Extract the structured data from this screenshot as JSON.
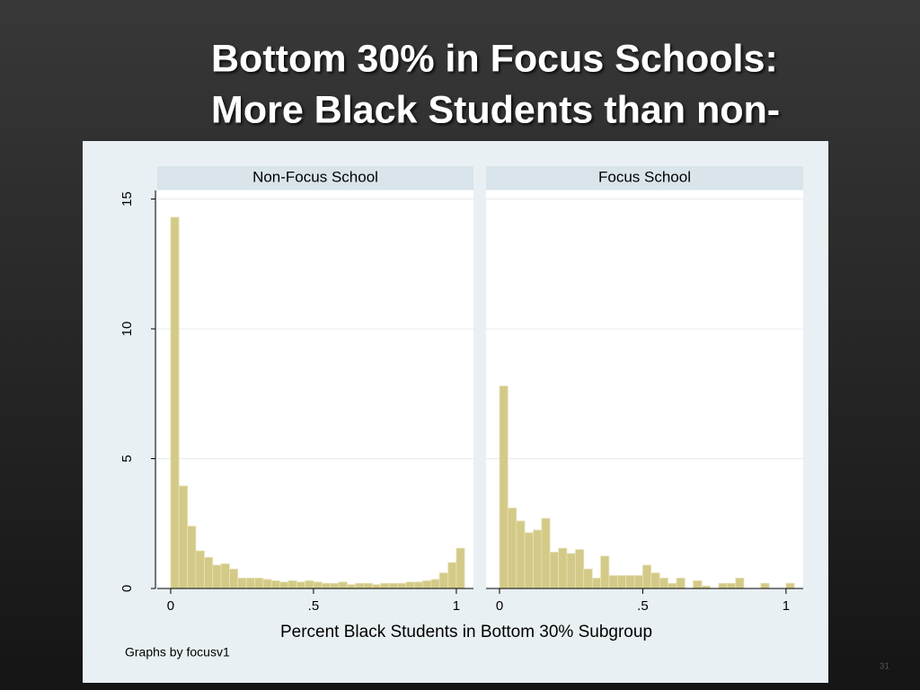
{
  "slide": {
    "title": [
      "Bottom 30% in Focus Schools:",
      "More Black Students than non-"
    ],
    "page_number": "31"
  },
  "figure": {
    "xlabel": "Percent Black Students in Bottom 30% Subgroup",
    "note": "Graphs by focusv1"
  },
  "chart_data": [
    {
      "type": "histogram",
      "title": "Non-Focus School",
      "color": "#d3ca88",
      "bins": [
        0,
        0.029,
        0.059,
        0.088,
        0.118,
        0.147,
        0.176,
        0.206,
        0.235,
        0.265,
        0.294,
        0.324,
        0.353,
        0.382,
        0.412,
        0.441,
        0.471,
        0.5,
        0.529,
        0.559,
        0.588,
        0.618,
        0.647,
        0.676,
        0.706,
        0.735,
        0.765,
        0.794,
        0.824,
        0.853,
        0.882,
        0.912,
        0.941,
        0.971,
        1,
        1.029
      ],
      "values": [
        14.3,
        3.95,
        2.4,
        1.45,
        1.2,
        0.9,
        0.95,
        0.75,
        0.4,
        0.4,
        0.4,
        0.35,
        0.3,
        0.25,
        0.3,
        0.25,
        0.3,
        0.25,
        0.2,
        0.2,
        0.25,
        0.15,
        0.2,
        0.2,
        0.15,
        0.2,
        0.2,
        0.2,
        0.25,
        0.25,
        0.3,
        0.35,
        0.6,
        1.0,
        1.55
      ],
      "xlim": [
        -0.047,
        1.06
      ],
      "ylim": [
        0,
        15.33
      ],
      "xticks": [
        0,
        {
          "value": 0.5,
          "label": ".5"
        },
        1
      ],
      "yticks": [
        0,
        5,
        10,
        15
      ],
      "grid": true
    },
    {
      "type": "histogram",
      "title": "Focus School",
      "color": "#d3ca88",
      "bins": [
        0,
        0.029,
        0.059,
        0.088,
        0.118,
        0.147,
        0.176,
        0.206,
        0.235,
        0.265,
        0.294,
        0.324,
        0.353,
        0.382,
        0.412,
        0.441,
        0.471,
        0.5,
        0.529,
        0.559,
        0.588,
        0.618,
        0.647,
        0.676,
        0.706,
        0.735,
        0.765,
        0.794,
        0.824,
        0.853,
        0.882,
        0.912,
        0.941,
        0.971,
        1,
        1.029
      ],
      "values": [
        7.8,
        3.1,
        2.6,
        2.15,
        2.25,
        2.7,
        1.4,
        1.55,
        1.35,
        1.5,
        0.75,
        0.4,
        1.25,
        0.5,
        0.5,
        0.5,
        0.5,
        0.9,
        0.6,
        0.4,
        0.2,
        0.4,
        0,
        0.3,
        0.1,
        0,
        0.2,
        0.2,
        0.4,
        0,
        0,
        0.2,
        0,
        0,
        0.2
      ],
      "xlim": [
        -0.047,
        1.06
      ],
      "ylim": [
        0,
        15.33
      ],
      "xticks": [
        0,
        {
          "value": 0.5,
          "label": ".5"
        },
        1
      ],
      "yticks": [
        0,
        5,
        10,
        15
      ],
      "grid": true
    }
  ]
}
